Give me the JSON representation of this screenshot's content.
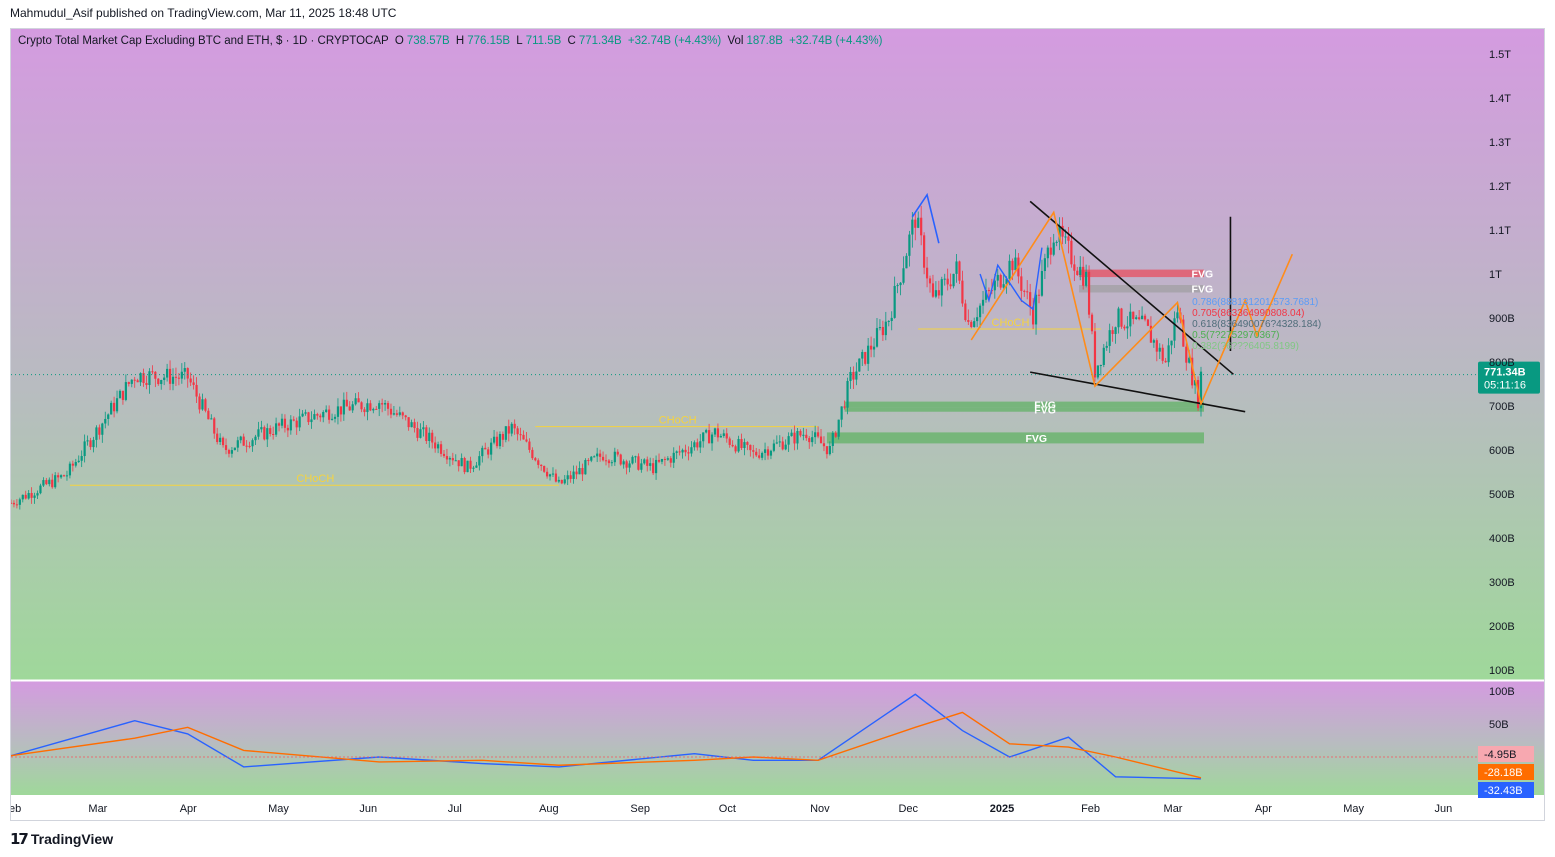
{
  "header": {
    "published_by": "Mahmudul_Asif published on TradingView.com, Mar 11, 2025 18:48 UTC"
  },
  "legend": {
    "symbol": "Crypto Total Market Cap Excluding BTC and ETH, $ · 1D · CRYPTOCAP",
    "open_label": "O",
    "open": "738.57B",
    "high_label": "H",
    "high": "776.15B",
    "low_label": "L",
    "low": "711.5B",
    "close_label": "C",
    "close": "771.34B",
    "change": "+32.74B (+4.43%)",
    "vol_label": "Vol",
    "vol": "187.8B",
    "vol_change": "+32.74B (+4.43%)"
  },
  "price_badge": {
    "price": "771.34B",
    "countdown": "05:11:16"
  },
  "footer": {
    "brand": "TradingView"
  },
  "colors": {
    "up": "#089981",
    "down": "#f23645",
    "annot_yellow": "#f5d33f",
    "fvg_green": "#4caf50",
    "fvg_red": "#f23645",
    "orange": "#ff8c1a",
    "blue": "#2962ff"
  },
  "chart_data": [
    {
      "type": "candlestick",
      "title": "Crypto Total Market Cap Excluding BTC and ETH",
      "y_axis_ticks": [
        "1.5T",
        "1.4T",
        "1.3T",
        "1.2T",
        "1.1T",
        "1T",
        "900B",
        "800B",
        "700B",
        "600B",
        "500B",
        "400B",
        "300B",
        "200B",
        "100B"
      ],
      "x_axis_ticks": [
        "eb",
        "Mar",
        "Apr",
        "May",
        "Jun",
        "Jul",
        "Aug",
        "Sep",
        "Oct",
        "Nov",
        "Dec",
        "2025",
        "Feb",
        "Mar",
        "Apr",
        "May",
        "Jun"
      ],
      "ylim": [
        85,
        1540
      ],
      "series_points": [
        {
          "x": "2024-02-01",
          "y": 480
        },
        {
          "x": "2024-02-20",
          "y": 545
        },
        {
          "x": "2024-03-14",
          "y": 770
        },
        {
          "x": "2024-04-01",
          "y": 765
        },
        {
          "x": "2024-04-13",
          "y": 600
        },
        {
          "x": "2024-05-01",
          "y": 650
        },
        {
          "x": "2024-05-20",
          "y": 690
        },
        {
          "x": "2024-06-05",
          "y": 710
        },
        {
          "x": "2024-06-25",
          "y": 610
        },
        {
          "x": "2024-07-05",
          "y": 560
        },
        {
          "x": "2024-07-20",
          "y": 650
        },
        {
          "x": "2024-08-05",
          "y": 520
        },
        {
          "x": "2024-08-20",
          "y": 590
        },
        {
          "x": "2024-09-06",
          "y": 560
        },
        {
          "x": "2024-09-27",
          "y": 640
        },
        {
          "x": "2024-10-10",
          "y": 590
        },
        {
          "x": "2024-10-28",
          "y": 640
        },
        {
          "x": "2024-11-05",
          "y": 600
        },
        {
          "x": "2024-11-12",
          "y": 760
        },
        {
          "x": "2024-11-25",
          "y": 900
        },
        {
          "x": "2024-12-04",
          "y": 1130
        },
        {
          "x": "2024-12-10",
          "y": 940
        },
        {
          "x": "2024-12-18",
          "y": 1010
        },
        {
          "x": "2024-12-22",
          "y": 890
        },
        {
          "x": "2025-01-06",
          "y": 1030
        },
        {
          "x": "2025-01-13",
          "y": 910
        },
        {
          "x": "2025-01-20",
          "y": 1100
        },
        {
          "x": "2025-01-31",
          "y": 990
        },
        {
          "x": "2025-02-03",
          "y": 780
        },
        {
          "x": "2025-02-10",
          "y": 900
        },
        {
          "x": "2025-02-20",
          "y": 880
        },
        {
          "x": "2025-02-27",
          "y": 800
        },
        {
          "x": "2025-03-03",
          "y": 920
        },
        {
          "x": "2025-03-06",
          "y": 820
        },
        {
          "x": "2025-03-10",
          "y": 715
        },
        {
          "x": "2025-03-11",
          "y": 771.34
        }
      ],
      "annotations": [
        {
          "label": "CHoCH",
          "price": 520
        },
        {
          "label": "CHoCH",
          "price": 653
        },
        {
          "label": "CHoCH",
          "price": 875
        },
        {
          "label": "FVG",
          "price_range": [
            958,
            975
          ]
        },
        {
          "label": "FVG",
          "price_range": [
            993,
            1010
          ]
        },
        {
          "label": "FVG",
          "price_range": [
            697,
            710
          ]
        },
        {
          "label": "FVG",
          "price_range": [
            687,
            697
          ]
        },
        {
          "label": "FVG",
          "price_range": [
            615,
            640
          ]
        }
      ],
      "fib_labels": [
        "0.786(888131201.573.7681)",
        "0.705(863364990808.04)",
        "0.618(836490076?4328.184)",
        "0.5(7?2752970367)",
        "0.382(?6???6405.8199)"
      ]
    },
    {
      "type": "line",
      "title": "",
      "y_axis_ticks": [
        "100B",
        "50B"
      ],
      "values_labels": [
        "-4.95B",
        "-28.18B",
        "-32.43B"
      ],
      "series": [
        {
          "name": "",
          "color": "#2962ff"
        },
        {
          "name": "",
          "color": "#ff6d00"
        }
      ]
    }
  ]
}
